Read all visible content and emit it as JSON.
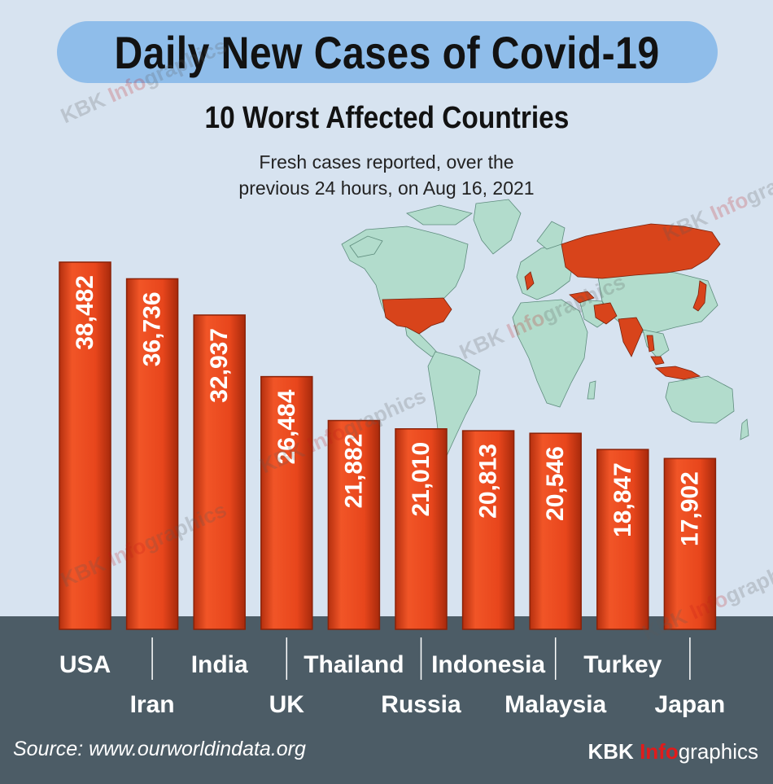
{
  "title": "Daily New Cases of Covid-19",
  "subtitle": "10 Worst Affected Countries",
  "description_line1": "Fresh cases reported, over the",
  "description_line2": "previous 24 hours, on Aug 16, 2021",
  "source": "Source: www.ourworldindata.org",
  "brand": {
    "part1": "KBK ",
    "part2": "Info",
    "part3": "graphics"
  },
  "colors": {
    "bar": "#e8461c",
    "bar_dark": "#a82a0c",
    "background": "#d7e3f0",
    "panel": "#4c5c66",
    "title_pill": "#8fbdea",
    "map_land": "#b2dccc",
    "map_highlight": "#d8441b"
  },
  "chart_data": {
    "type": "bar",
    "title": "Daily New Cases of Covid-19",
    "subtitle": "10 Worst Affected Countries",
    "categories": [
      "USA",
      "Iran",
      "India",
      "UK",
      "Thailand",
      "Russia",
      "Indonesia",
      "Malaysia",
      "Turkey",
      "Japan"
    ],
    "values": [
      38482,
      36736,
      32937,
      26484,
      21882,
      21010,
      20813,
      20546,
      18847,
      17902
    ],
    "value_labels": [
      "38,482",
      "36,736",
      "32,937",
      "26,484",
      "21,882",
      "21,010",
      "20,813",
      "20,546",
      "18,847",
      "17,902"
    ],
    "xlabel": "",
    "ylabel": "",
    "grid": false,
    "legend": "none"
  }
}
